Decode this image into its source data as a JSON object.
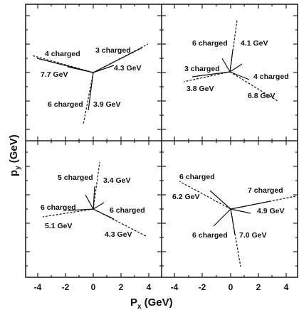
{
  "axes": {
    "x_title": "P",
    "x_title_sub": "x",
    "x_title_unit": "(GeV)",
    "y_title": "p",
    "y_title_sub": "y",
    "y_title_unit": "(GeV)",
    "x_ticks": [
      "-4",
      "-2",
      "0",
      "2",
      "4",
      "-4",
      "-2",
      "0",
      "2",
      "4"
    ]
  },
  "panels": [
    {
      "id": "top-left",
      "labels": [
        "4 charged",
        "3 charged",
        "7.7 GeV",
        "4.3 GeV",
        "6 charged",
        "3.9 GeV"
      ]
    },
    {
      "id": "top-right",
      "labels": [
        "6 charged",
        "4.1 GeV",
        "3 charged",
        "4 charged",
        "3.8 GeV",
        "6.8 GeV"
      ]
    },
    {
      "id": "bottom-left",
      "labels": [
        "5 charged",
        "3.4 GeV",
        "6 charged",
        "6 charged",
        "5.1 GeV",
        "4.3 GeV"
      ]
    },
    {
      "id": "bottom-right",
      "labels": [
        "6 charged",
        "7 charged",
        "6.2 GeV",
        "4.9 GeV",
        "6 charged",
        "7.0 GeV"
      ]
    }
  ]
}
